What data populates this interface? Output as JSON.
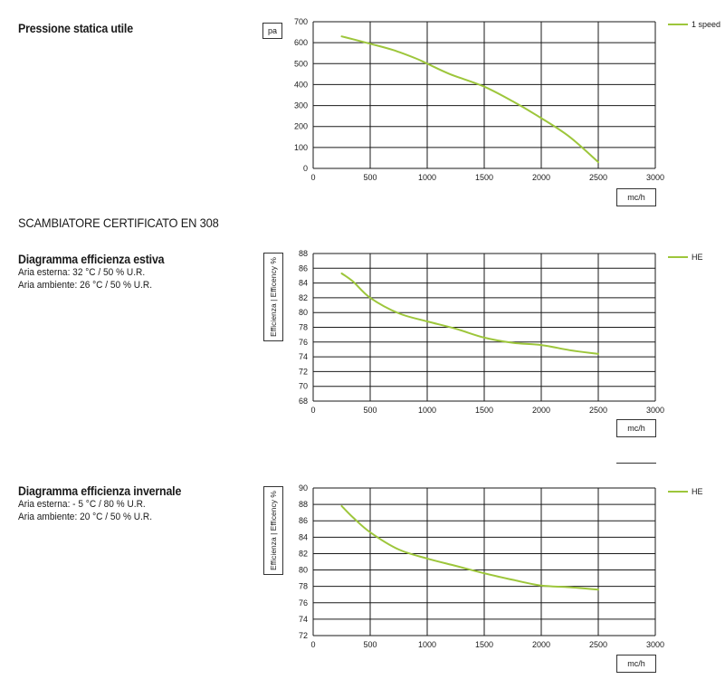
{
  "heading": "SCAMBIATORE CERTIFICATO EN 308",
  "line_color": "#9dc63b",
  "chart_data": [
    {
      "type": "line",
      "title": "Pressione statica utile",
      "subtitle_lines": [],
      "ylabel": "pa",
      "xlabel": "mc/h",
      "xlim": [
        0,
        3000
      ],
      "ylim": [
        0,
        700
      ],
      "xticks": [
        0,
        500,
        1000,
        1500,
        2000,
        2500,
        3000
      ],
      "yticks": [
        0,
        100,
        200,
        300,
        400,
        500,
        600,
        700
      ],
      "grid": true,
      "legend_position": "right",
      "series": [
        {
          "name": "1 speed",
          "x": [
            250,
            500,
            700,
            900,
            1000,
            1200,
            1500,
            1750,
            2000,
            2250,
            2500
          ],
          "y": [
            630,
            595,
            565,
            525,
            500,
            450,
            390,
            320,
            240,
            150,
            30
          ]
        }
      ]
    },
    {
      "type": "line",
      "title": "Diagramma efficienza estiva",
      "subtitle_lines": [
        "Aria esterna: 32 °C / 50 % U.R.",
        "Aria ambiente: 26 °C / 50 % U.R."
      ],
      "ylabel": "Efficienza | Efficency %",
      "xlabel": "mc/h",
      "xlim": [
        0,
        3000
      ],
      "ylim": [
        68,
        88
      ],
      "xticks": [
        0,
        500,
        1000,
        1500,
        2000,
        2500,
        3000
      ],
      "yticks": [
        68,
        70,
        72,
        74,
        76,
        78,
        80,
        82,
        84,
        86,
        88
      ],
      "grid": true,
      "legend_position": "right",
      "series": [
        {
          "name": "HE",
          "x": [
            250,
            350,
            500,
            750,
            1000,
            1250,
            1500,
            1750,
            2000,
            2250,
            2500
          ],
          "y": [
            85.3,
            84.2,
            82.0,
            79.9,
            78.8,
            77.8,
            76.6,
            75.9,
            75.6,
            74.9,
            74.4
          ]
        }
      ]
    },
    {
      "type": "line",
      "title": "Diagramma efficienza invernale",
      "subtitle_lines": [
        "Aria esterna: - 5 °C / 80 % U.R.",
        "Aria ambiente: 20 °C / 50 % U.R."
      ],
      "ylabel": "Efficienza | Efficency %",
      "xlabel": "mc/h",
      "xlim": [
        0,
        3000
      ],
      "ylim": [
        72,
        90
      ],
      "xticks": [
        0,
        500,
        1000,
        1500,
        2000,
        2500,
        3000
      ],
      "yticks": [
        72,
        74,
        76,
        78,
        80,
        82,
        84,
        86,
        88,
        90
      ],
      "grid": true,
      "legend_position": "right",
      "series": [
        {
          "name": "HE",
          "x": [
            250,
            350,
            500,
            750,
            1000,
            1250,
            1500,
            1750,
            2000,
            2250,
            2500
          ],
          "y": [
            87.8,
            86.4,
            84.6,
            82.5,
            81.4,
            80.5,
            79.6,
            78.8,
            78.1,
            77.9,
            77.6
          ]
        }
      ]
    }
  ]
}
